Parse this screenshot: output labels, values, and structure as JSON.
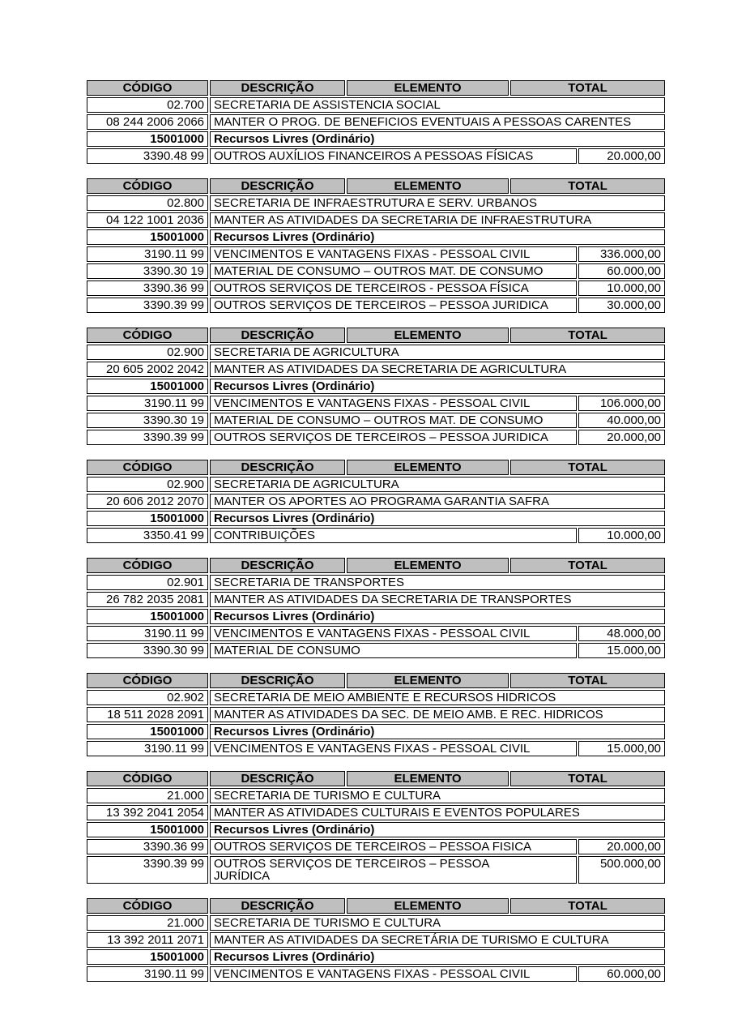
{
  "columns": {
    "codigo": "CÓDIGO",
    "descricao": "DESCRIÇÃO",
    "elemento": "ELEMENTO",
    "total": "TOTAL"
  },
  "colors": {
    "header_bg": "#bfbfbf",
    "border": "#000000",
    "text": "#000000",
    "page_bg": "#ffffff"
  },
  "tables": [
    {
      "organ": {
        "code": "02.700",
        "name": "SECRETARIA DE ASSISTENCIA SOCIAL"
      },
      "action": {
        "code": "08 244 2006 2066",
        "name": "MANTER O PROG. DE BENEFICIOS EVENTUAIS A PESSOAS CARENTES"
      },
      "source": {
        "code": "15001000",
        "name": "Recursos Livres (Ordinário)"
      },
      "elements": [
        {
          "code": "3390.48 99",
          "name": "OUTROS AUXÍLIOS FINANCEIROS A PESSOAS FÍSICAS",
          "total": "20.000,00"
        }
      ]
    },
    {
      "organ": {
        "code": "02.800",
        "name": "SECRETARIA DE INFRAESTRUTURA E SERV. URBANOS"
      },
      "action": {
        "code": "04 122 1001 2036",
        "name": "MANTER AS ATIVIDADES DA SECRETARIA DE INFRAESTRUTURA"
      },
      "source": {
        "code": "15001000",
        "name": "Recursos Livres (Ordinário)"
      },
      "elements": [
        {
          "code": "3190.11 99",
          "name": "VENCIMENTOS E VANTAGENS FIXAS - PESSOAL CIVIL",
          "total": "336.000,00"
        },
        {
          "code": "3390.30 19",
          "name": "MATERIAL DE CONSUMO – OUTROS MAT. DE CONSUMO",
          "total": "60.000,00"
        },
        {
          "code": "3390.36 99",
          "name": "OUTROS SERVIÇOS DE TERCEIROS - PESSOA FÍSICA",
          "total": "10.000,00"
        },
        {
          "code": "3390.39 99",
          "name": "OUTROS SERVIÇOS DE TERCEIROS – PESSOA JURIDICA",
          "total": "30.000,00"
        }
      ]
    },
    {
      "organ": {
        "code": "02.900",
        "name": "SECRETARIA DE AGRICULTURA"
      },
      "action": {
        "code": "20 605 2002 2042",
        "name": "MANTER AS ATIVIDADES DA SECRETARIA DE AGRICULTURA"
      },
      "source": {
        "code": "15001000",
        "name": "Recursos Livres (Ordinário)"
      },
      "elements": [
        {
          "code": "3190.11 99",
          "name": "VENCIMENTOS E VANTAGENS FIXAS - PESSOAL CIVIL",
          "total": "106.000,00"
        },
        {
          "code": "3390.30 19",
          "name": "MATERIAL DE CONSUMO – OUTROS MAT. DE CONSUMO",
          "total": "40.000,00"
        },
        {
          "code": "3390.39 99",
          "name": "OUTROS SERVIÇOS DE TERCEIROS – PESSOA JURIDICA",
          "total": "20.000,00"
        }
      ]
    },
    {
      "organ": {
        "code": "02.900",
        "name": "SECRETARIA DE AGRICULTURA"
      },
      "action": {
        "code": "20 606 2012 2070",
        "name": "MANTER OS APORTES AO PROGRAMA GARANTIA SAFRA"
      },
      "source": {
        "code": "15001000",
        "name": "Recursos Livres (Ordinário)"
      },
      "elements": [
        {
          "code": "3350.41 99",
          "name": "CONTRIBUIÇÕES",
          "total": "10.000,00"
        }
      ]
    },
    {
      "organ": {
        "code": "02.901",
        "name": "SECRETARIA DE TRANSPORTES"
      },
      "action": {
        "code": "26 782 2035 2081",
        "name": "MANTER AS ATIVIDADES DA SECRETARIA DE TRANSPORTES"
      },
      "source": {
        "code": "15001000",
        "name": "Recursos Livres (Ordinário)"
      },
      "elements": [
        {
          "code": "3190.11 99",
          "name": "VENCIMENTOS E VANTAGENS FIXAS - PESSOAL CIVIL",
          "total": "48.000,00"
        },
        {
          "code": "3390.30 99",
          "name": "MATERIAL DE CONSUMO",
          "total": "15.000,00"
        }
      ]
    },
    {
      "organ": {
        "code": "02.902",
        "name": "SECRETARIA DE MEIO AMBIENTE E RECURSOS HIDRICOS"
      },
      "action": {
        "code": "18 511 2028 2091",
        "name": "MANTER AS ATIVIDADES DA SEC. DE MEIO AMB. E REC. HIDRICOS"
      },
      "source": {
        "code": "15001000",
        "name": "Recursos Livres (Ordinário)"
      },
      "elements": [
        {
          "code": "3190.11 99",
          "name": "VENCIMENTOS E VANTAGENS FIXAS - PESSOAL CIVIL",
          "total": "15.000,00"
        }
      ]
    },
    {
      "organ": {
        "code": "21.000",
        "name": "SECRETARIA DE TURISMO E CULTURA"
      },
      "action": {
        "code": "13 392 2041 2054",
        "name": "MANTER AS ATIVIDADES CULTURAIS E EVENTOS POPULARES"
      },
      "source": {
        "code": "15001000",
        "name": "Recursos Livres (Ordinário)"
      },
      "elements": [
        {
          "code": "3390.36 99",
          "name": "OUTROS SERVIÇOS DE TERCEIROS – PESSOA FISICA",
          "total": "20.000,00"
        },
        {
          "code": "3390.39 99",
          "name": "OUTROS SERVIÇOS DE TERCEIROS – PESSOA\nJURÍDICA",
          "total": "500.000,00"
        }
      ]
    },
    {
      "organ": {
        "code": "21.000",
        "name": "SECRETARIA DE TURISMO E CULTURA"
      },
      "action": {
        "code": "13 392 2011 2071",
        "name": "MANTER AS ATIVIDADES DA SECRETÁRIA DE TURISMO E CULTURA"
      },
      "source": {
        "code": "15001000",
        "name": "Recursos Livres (Ordinário)"
      },
      "elements": [
        {
          "code": "3190.11 99",
          "name": "VENCIMENTOS E VANTAGENS FIXAS - PESSOAL CIVIL",
          "total": "60.000,00"
        }
      ]
    }
  ]
}
